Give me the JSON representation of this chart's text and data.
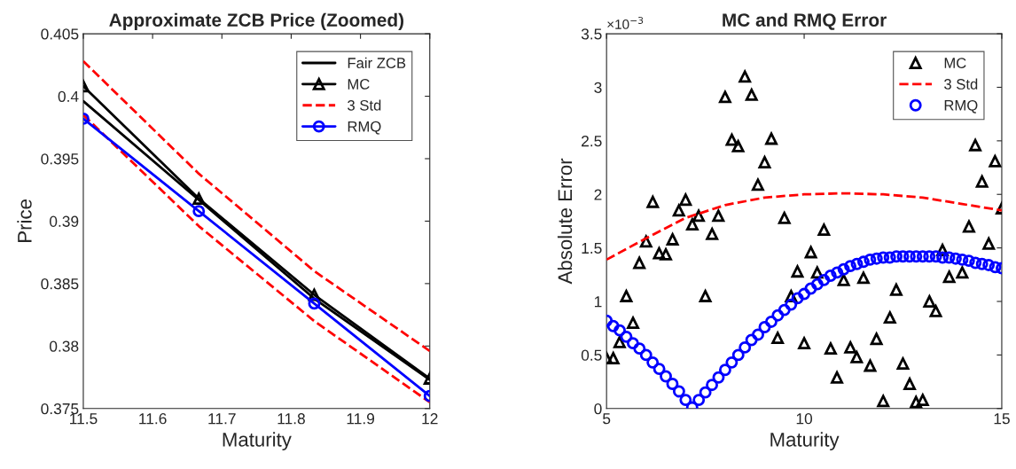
{
  "chart_data": [
    {
      "type": "line",
      "title": "Approximate ZCB Price (Zoomed)",
      "xlabel": "Maturity",
      "ylabel": "Price",
      "xlim": [
        11.5,
        12
      ],
      "xticks": [
        11.5,
        11.6,
        11.7,
        11.8,
        11.9,
        12
      ],
      "ylim": [
        0.375,
        0.405
      ],
      "yticks": [
        0.375,
        0.38,
        0.385,
        0.39,
        0.395,
        0.4,
        0.405
      ],
      "grid": false,
      "legend": "top right",
      "series": [
        {
          "name": "Fair ZCB",
          "color": "#000000",
          "marker": "none",
          "line_style": "solid",
          "x": [
            11.5,
            11.6667,
            11.8333,
            12
          ],
          "values": [
            0.3996,
            0.3917,
            0.3838,
            0.3773
          ]
        },
        {
          "name": "MC",
          "color": "#000000",
          "marker": "triangle",
          "line_style": "solid",
          "x": [
            11.5,
            11.6667,
            11.8333,
            12
          ],
          "values": [
            0.4008,
            0.3918,
            0.3841,
            0.3774
          ]
        },
        {
          "name": "3 Std",
          "color": "#ff0000",
          "marker": "none",
          "line_style": "dashed",
          "x": [
            11.5,
            11.6667,
            11.8333,
            12
          ],
          "values": [
            0.4028,
            0.3938,
            0.386,
            0.3796
          ]
        },
        {
          "color": "#ff0000",
          "marker": "none",
          "line_style": "dashed",
          "x": [
            11.5,
            11.6667,
            11.8333,
            12
          ],
          "values": [
            0.3985,
            0.3896,
            0.382,
            0.3755
          ]
        },
        {
          "name": "RMQ",
          "color": "#0000ff",
          "marker": "circle",
          "line_style": "solid",
          "x": [
            11.5,
            11.6667,
            11.8333,
            12
          ],
          "values": [
            0.3982,
            0.3908,
            0.3834,
            0.376
          ]
        }
      ]
    },
    {
      "type": "scatter",
      "title": "MC and RMQ Error",
      "xlabel": "Maturity",
      "ylabel": "Absolute Error",
      "annotations": [
        "×10$^{−3}$"
      ],
      "xlim": [
        5,
        15
      ],
      "xticks": [
        5,
        10,
        15
      ],
      "ylim": [
        0,
        3.5
      ],
      "yticks": [
        0,
        0.5,
        1,
        1.5,
        2,
        2.5,
        3,
        3.5
      ],
      "grid": false,
      "legend": "top right",
      "series": [
        {
          "name": "MC",
          "color": "#000000",
          "marker": "triangle",
          "x": [
            5,
            5.17,
            5.33,
            5.5,
            5.67,
            5.83,
            6,
            6.17,
            6.33,
            6.5,
            6.67,
            6.83,
            7,
            7.17,
            7.33,
            7.5,
            7.67,
            7.83,
            8,
            8.17,
            8.33,
            8.5,
            8.67,
            8.83,
            9,
            9.17,
            9.33,
            9.5,
            9.67,
            9.83,
            10,
            10.17,
            10.33,
            10.5,
            10.67,
            10.83,
            11,
            11.17,
            11.33,
            11.5,
            11.67,
            11.83,
            12,
            12.17,
            12.33,
            12.5,
            12.67,
            12.83,
            13,
            13.17,
            13.33,
            13.5,
            13.67,
            14,
            14.17,
            14.33,
            14.5,
            14.67,
            14.83,
            15
          ],
          "values": [
            0.47,
            0.47,
            0.62,
            1.05,
            0.8,
            1.36,
            1.56,
            1.93,
            1.45,
            1.44,
            1.58,
            1.85,
            1.95,
            1.72,
            1.8,
            1.05,
            1.63,
            1.8,
            2.91,
            2.51,
            2.45,
            3.1,
            2.93,
            2.09,
            2.3,
            2.52,
            0.66,
            1.78,
            1.05,
            1.28,
            0.61,
            1.46,
            1.27,
            1.67,
            0.56,
            0.29,
            1.2,
            0.57,
            0.48,
            1.22,
            0.4,
            0.65,
            0.07,
            0.85,
            1.11,
            0.42,
            0.23,
            0.06,
            0.08,
            1.0,
            0.91,
            1.48,
            1.23,
            1.27,
            1.7,
            2.46,
            2.12,
            1.54,
            2.31,
            1.87
          ]
        },
        {
          "name": "3 Std",
          "type": "line",
          "color": "#ff0000",
          "marker": "none",
          "line_style": "dashed",
          "x": [
            5,
            6,
            7,
            8,
            9,
            10,
            11,
            12,
            13,
            14,
            15
          ],
          "values": [
            1.39,
            1.59,
            1.78,
            1.9,
            1.97,
            2.0,
            2.01,
            2.0,
            1.97,
            1.91,
            1.85
          ]
        },
        {
          "name": "RMQ",
          "color": "#0000ff",
          "marker": "circle",
          "x": [
            5,
            5.1667,
            5.3333,
            5.5,
            5.6667,
            5.8333,
            6,
            6.1667,
            6.3333,
            6.5,
            6.6667,
            6.8333,
            7,
            7.1667,
            7.3333,
            7.5,
            7.6667,
            7.8333,
            8,
            8.1667,
            8.3333,
            8.5,
            8.6667,
            8.8333,
            9,
            9.1667,
            9.3333,
            9.5,
            9.6667,
            9.8333,
            10,
            10.1667,
            10.3333,
            10.5,
            10.6667,
            10.8333,
            11,
            11.1667,
            11.3333,
            11.5,
            11.6667,
            11.8333,
            12,
            12.1667,
            12.3333,
            12.5,
            12.6667,
            12.8333,
            13,
            13.1667,
            13.3333,
            13.5,
            13.6667,
            13.8333,
            14,
            14.1667,
            14.3333,
            14.5,
            14.6667,
            14.8333,
            15
          ],
          "values": [
            0.82,
            0.77,
            0.73,
            0.67,
            0.61,
            0.56,
            0.5,
            0.43,
            0.37,
            0.3,
            0.23,
            0.16,
            0.08,
            0.01,
            0.08,
            0.15,
            0.22,
            0.29,
            0.36,
            0.43,
            0.5,
            0.57,
            0.64,
            0.69,
            0.76,
            0.81,
            0.87,
            0.92,
            0.97,
            1.03,
            1.07,
            1.12,
            1.16,
            1.2,
            1.24,
            1.27,
            1.3,
            1.33,
            1.35,
            1.37,
            1.39,
            1.4,
            1.41,
            1.41,
            1.42,
            1.42,
            1.42,
            1.42,
            1.42,
            1.42,
            1.42,
            1.41,
            1.41,
            1.4,
            1.39,
            1.38,
            1.36,
            1.35,
            1.34,
            1.32,
            1.31
          ]
        }
      ]
    }
  ]
}
